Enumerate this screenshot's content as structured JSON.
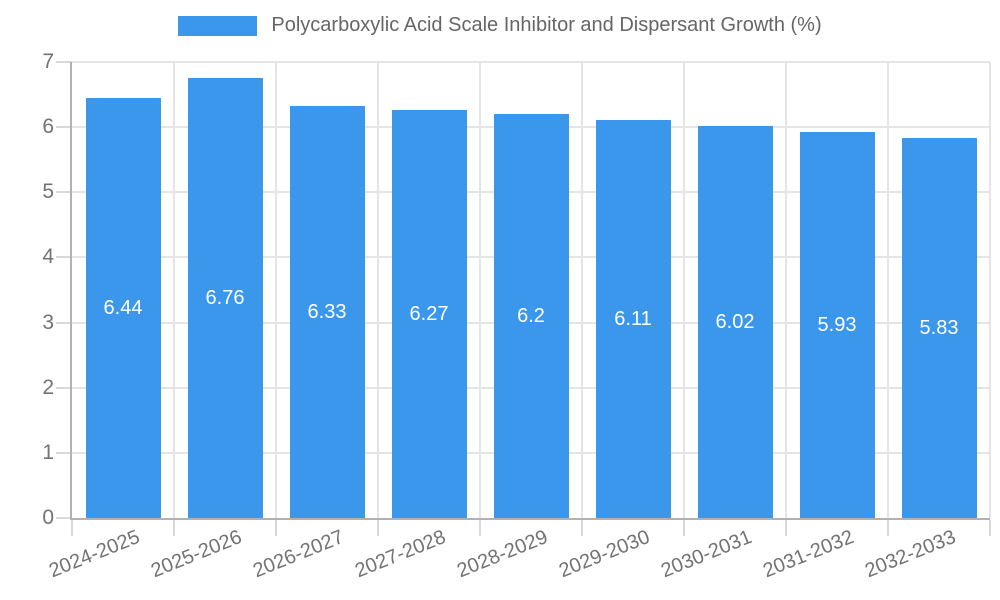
{
  "chart_data": {
    "type": "bar",
    "title": "Polycarboxylic Acid Scale Inhibitor and Dispersant Growth (%)",
    "categories": [
      "2024-2025",
      "2025-2026",
      "2026-2027",
      "2027-2028",
      "2028-2029",
      "2029-2030",
      "2030-2031",
      "2031-2032",
      "2032-2033"
    ],
    "values": [
      6.44,
      6.76,
      6.33,
      6.27,
      6.2,
      6.11,
      6.02,
      5.93,
      5.83
    ],
    "value_labels": [
      "6.44",
      "6.76",
      "6.33",
      "6.27",
      "6.2",
      "6.11",
      "6.02",
      "5.93",
      "5.83"
    ],
    "xlabel": "",
    "ylabel": "",
    "ylim": [
      0,
      7
    ],
    "yticks": [
      0,
      1,
      2,
      3,
      4,
      5,
      6,
      7
    ],
    "grid": true,
    "legend_position": "top",
    "colors": {
      "bar": "#3b97ec",
      "bar_label": "#ffffff",
      "grid": "#e5e5e5",
      "axis_line": "#b1b1b1",
      "tick": "#d9d9d9",
      "axis_text": "#737373",
      "legend_text": "#666666"
    }
  }
}
